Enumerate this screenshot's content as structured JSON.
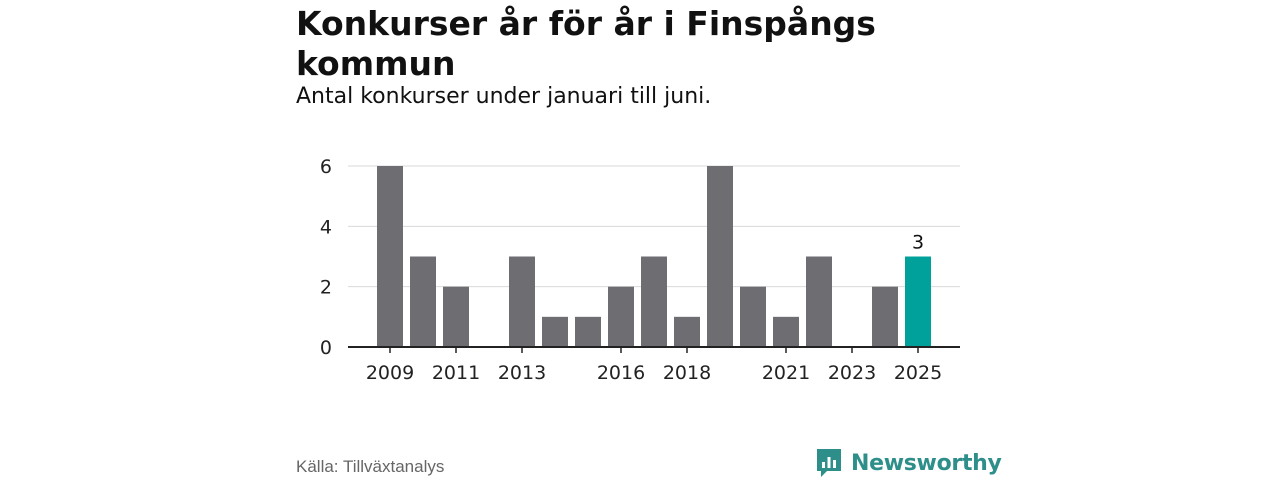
{
  "header": {
    "title": "Konkurser år för år i Finspångs kommun",
    "subtitle": "Antal konkurser under januari till juni."
  },
  "footer": {
    "source": "Källa: Tillväxtanalys",
    "brand": "Newsworthy"
  },
  "colors": {
    "bar": "#6e6d72",
    "highlight": "#00a19a",
    "grid": "#d9d9d9",
    "axis": "#222222",
    "brand": "#2e8f8a"
  },
  "chart_data": {
    "type": "bar",
    "categories": [
      "2009",
      "2010",
      "2011",
      "2012",
      "2013",
      "2014",
      "2015",
      "2016",
      "2017",
      "2018",
      "2019",
      "2020",
      "2021",
      "2022",
      "2023",
      "2024",
      "2025"
    ],
    "values": [
      6,
      3,
      2,
      0,
      3,
      1,
      1,
      2,
      3,
      1,
      6,
      2,
      1,
      3,
      0,
      2,
      3
    ],
    "x_tick_labels": [
      "2009",
      "2011",
      "2013",
      "2016",
      "2018",
      "2021",
      "2023",
      "2025"
    ],
    "y_ticks": [
      0,
      2,
      4,
      6
    ],
    "ylim": [
      0,
      6
    ],
    "highlight_category": "2025",
    "data_labels": [
      {
        "category": "2025",
        "text": "3"
      }
    ],
    "grid": true,
    "title": "Konkurser år för år i Finspångs kommun",
    "subtitle": "Antal konkurser under januari till juni.",
    "xlabel": "",
    "ylabel": ""
  }
}
